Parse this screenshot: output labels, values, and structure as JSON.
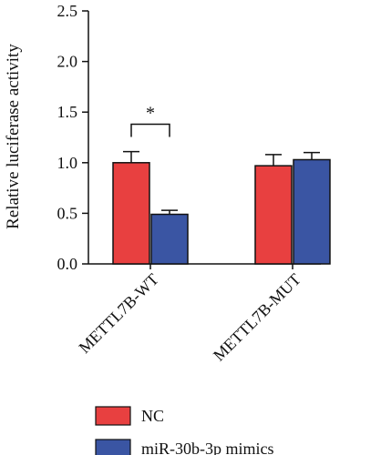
{
  "chart_data": {
    "type": "bar",
    "title": "",
    "xlabel": "",
    "ylabel": "Relative luciferase activity",
    "ylim": [
      0,
      2.5
    ],
    "yticks": [
      "0.0",
      "0.5",
      "1.0",
      "1.5",
      "2.0",
      "2.5"
    ],
    "categories": [
      "METTL7B-WT",
      "METTL7B-MUT"
    ],
    "series": [
      {
        "name": "NC",
        "values": [
          1.0,
          0.97
        ],
        "errors": [
          0.11,
          0.11
        ],
        "color": "#e84040"
      },
      {
        "name": "miR-30b-3p mimics",
        "values": [
          0.49,
          1.03
        ],
        "errors": [
          0.04,
          0.07
        ],
        "color": "#3a55a3"
      }
    ],
    "annotations": [
      {
        "text": "*",
        "category": "METTL7B-WT",
        "level": 1.38
      }
    ],
    "legend_position": "bottom",
    "grid": false
  }
}
